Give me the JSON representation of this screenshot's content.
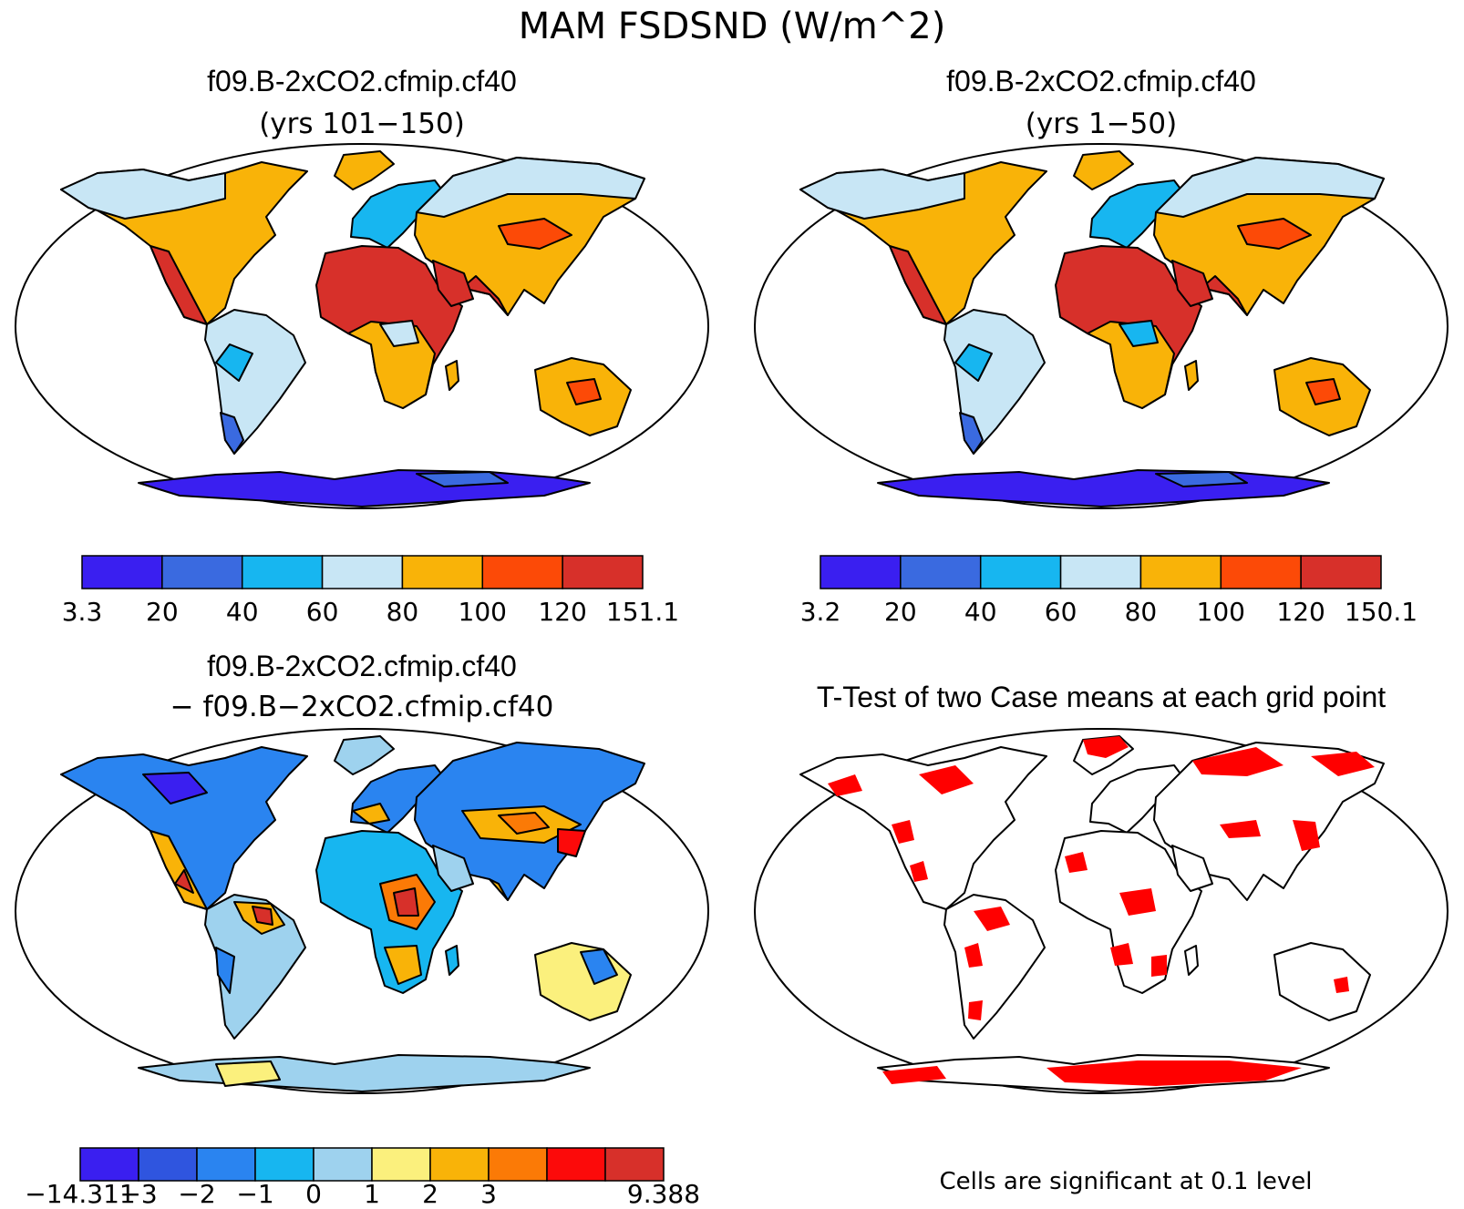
{
  "figure_title": "MAM FSDSND (W/m^2)",
  "panels": [
    {
      "id": "case1",
      "title": "f09.B-2xCO2.cfmip.cf40",
      "subtitle": "(yrs 101−150)",
      "colorbar": {
        "colors": [
          "#3a1ff0",
          "#3a6ae0",
          "#17b6f0",
          "#c8e6f5",
          "#f9b308",
          "#fc4a07",
          "#d7302a"
        ],
        "ticks": [
          "3.3",
          "20",
          "40",
          "60",
          "80",
          "100",
          "120",
          "151.1"
        ]
      }
    },
    {
      "id": "case2",
      "title": "f09.B-2xCO2.cfmip.cf40",
      "subtitle": "(yrs 1−50)",
      "colorbar": {
        "colors": [
          "#3a1ff0",
          "#3a6ae0",
          "#17b6f0",
          "#c8e6f5",
          "#f9b308",
          "#fc4a07",
          "#d7302a"
        ],
        "ticks": [
          "3.2",
          "20",
          "40",
          "60",
          "80",
          "100",
          "120",
          "150.1"
        ]
      }
    },
    {
      "id": "difference",
      "title": "f09.B-2xCO2.cfmip.cf40",
      "subtitle": "− f09.B−2xCO2.cfmip.cf40",
      "colorbar": {
        "colors": [
          "#3a1ff0",
          "#2f55df",
          "#2a84f0",
          "#17b6f0",
          "#9ed2ee",
          "#fbf07d",
          "#f9b308",
          "#fb7a06",
          "#fc0a0a",
          "#d7302a"
        ],
        "ticks": [
          "−14.311",
          "−3",
          "−2",
          "−1",
          "0",
          "1",
          "2",
          "3",
          "",
          "9.388"
        ]
      }
    },
    {
      "id": "ttest",
      "title": "T-Test of two Case means at each grid point",
      "footnote": "Cells are significant at 0.1 level",
      "significant_color": "#ff0000"
    }
  ]
}
